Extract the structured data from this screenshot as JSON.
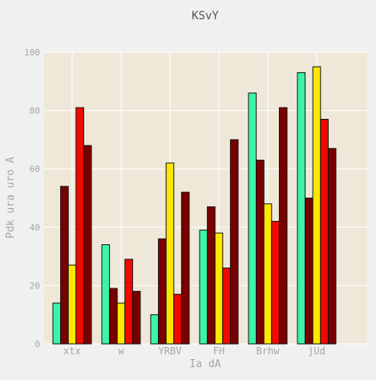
{
  "chart_data": {
    "type": "bar",
    "title": "KSvY",
    "xlabel": "Ia dA",
    "ylabel": "Pdk ura  uro A",
    "categories": [
      "xtx",
      "w",
      "YRBV",
      "FH",
      "Brhw",
      "jUd"
    ],
    "ylim": [
      0,
      100
    ],
    "yticks": [
      0,
      20,
      40,
      60,
      80,
      100
    ],
    "grid": true,
    "legend": "none",
    "colors": {
      "plot_background": "#efe8d8",
      "page_background": "#f0f0f0",
      "grid": "#ffffff",
      "axis_text": "#a6a6a6",
      "title_text": "#555555",
      "bar_edge": "#111111"
    },
    "series": [
      {
        "color": "#3cf3a8",
        "values": [
          14,
          34,
          10,
          39,
          86,
          93
        ]
      },
      {
        "color": "#7a0000",
        "values": [
          54,
          19,
          36,
          47,
          63,
          50
        ]
      },
      {
        "color": "#ffe800",
        "values": [
          27,
          14,
          62,
          38,
          48,
          95
        ]
      },
      {
        "color": "#f00a00",
        "values": [
          81,
          29,
          17,
          26,
          42,
          77
        ]
      },
      {
        "color": "#7a0000",
        "values": [
          68,
          18,
          52,
          70,
          81,
          67
        ]
      }
    ]
  }
}
